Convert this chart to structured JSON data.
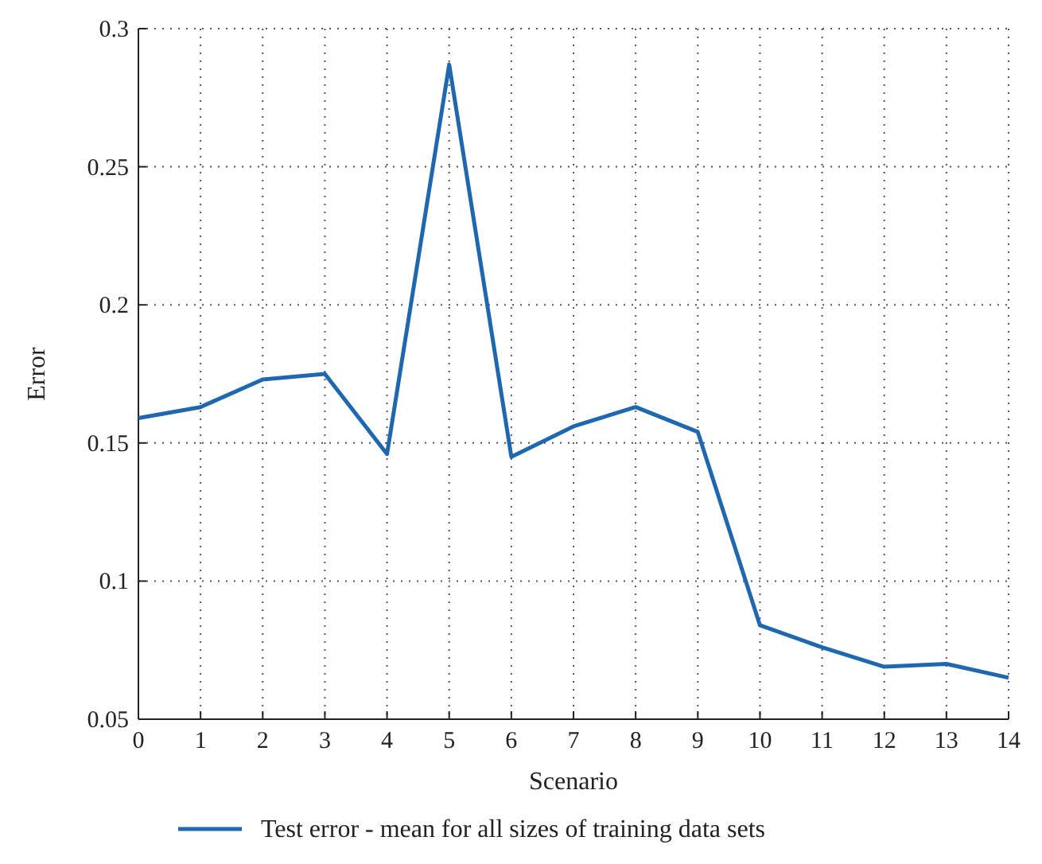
{
  "chart_data": {
    "type": "line",
    "xlabel": "Scenario",
    "ylabel": "Error",
    "x": [
      0,
      1,
      2,
      3,
      4,
      5,
      6,
      7,
      8,
      9,
      10,
      11,
      12,
      13,
      14
    ],
    "series": [
      {
        "name": "Test error - mean for all sizes of training data sets",
        "color": "#1f68b0",
        "values": [
          0.159,
          0.163,
          0.173,
          0.175,
          0.146,
          0.287,
          0.145,
          0.156,
          0.163,
          0.154,
          0.084,
          0.076,
          0.069,
          0.07,
          0.065
        ]
      }
    ],
    "xlim": [
      0,
      14
    ],
    "xticks": [
      0,
      1,
      2,
      3,
      4,
      5,
      6,
      7,
      8,
      9,
      10,
      11,
      12,
      13,
      14
    ],
    "ylim": [
      0.05,
      0.3
    ],
    "yticks": [
      0.05,
      0.1,
      0.15,
      0.2,
      0.25,
      0.3
    ],
    "grid": true,
    "legend": "bottom",
    "marker": "none",
    "line_style": "solid"
  }
}
